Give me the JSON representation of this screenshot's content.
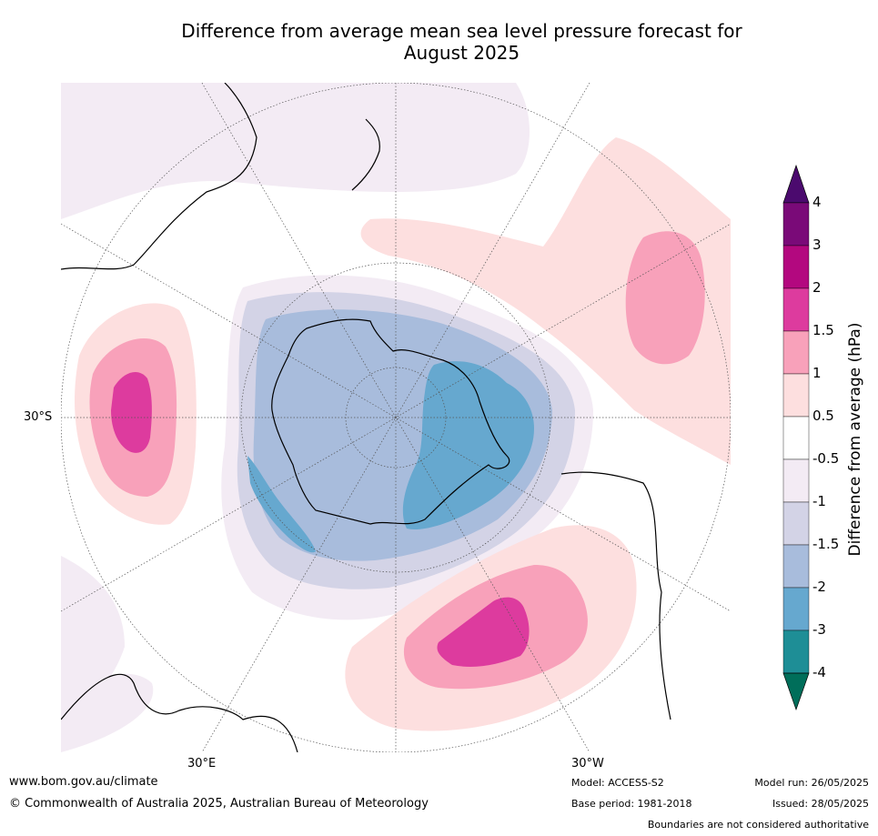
{
  "title_line1": "Difference from average mean sea level pressure forecast for",
  "title_line2": "August 2025",
  "map_labels": {
    "lat": "30°S",
    "lon_east": "30°E",
    "lon_west": "30°W"
  },
  "colorbar": {
    "label": "Difference from average (hPa)",
    "ticks": [
      "4",
      "3",
      "2",
      "1.5",
      "1",
      "0.5",
      "-0.5",
      "-1",
      "-1.5",
      "-2",
      "-3",
      "-4"
    ],
    "colors": [
      "#4b0a6e",
      "#7a0a78",
      "#b3087f",
      "#dd3b9e",
      "#f8a1ba",
      "#fddfdf",
      "#ffffff",
      "#f3ebf4",
      "#d3d3e6",
      "#a8bcdc",
      "#66a8cf",
      "#1e8e96",
      "#006e5a"
    ]
  },
  "footer": {
    "website": "www.bom.gov.au/climate",
    "copyright": "© Commonwealth of Australia 2025, Australian Bureau of Meteorology",
    "model": "Model: ACCESS-S2",
    "base_period": "Base period: 1981-2018",
    "model_run": "Model run: 26/05/2025",
    "issued": "Issued: 28/05/2025",
    "disclaimer": "Boundaries are not considered authoritative"
  }
}
